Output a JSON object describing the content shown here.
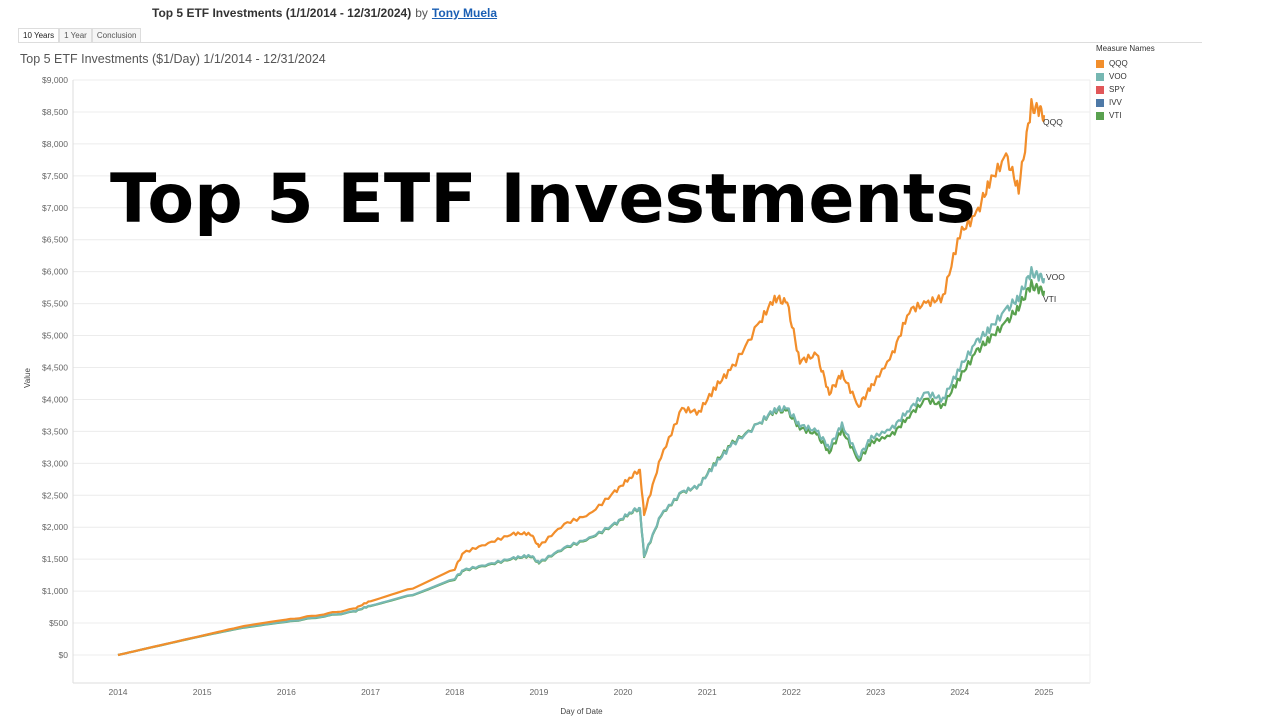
{
  "header": {
    "title": "Top 5 ETF Investments (1/1/2014 - 12/31/2024)",
    "by": "by",
    "author": "Tony Muela"
  },
  "tabs": [
    {
      "label": "10 Years",
      "active": true
    },
    {
      "label": "1 Year",
      "active": false
    },
    {
      "label": "Conclusion",
      "active": false
    }
  ],
  "overlay_text": "Top 5 ETF Investments",
  "chart_data": {
    "type": "line",
    "title": "Top 5 ETF Investments ($1/Day) 1/1/2014 - 12/31/2024",
    "xlabel": "Day of Date",
    "ylabel": "Value",
    "xlim": [
      2014,
      2025
    ],
    "ylim": [
      0,
      9000
    ],
    "x_ticks": [
      "2014",
      "2015",
      "2016",
      "2017",
      "2018",
      "2019",
      "2020",
      "2021",
      "2022",
      "2023",
      "2024",
      "2025"
    ],
    "y_ticks": [
      "$0",
      "$500",
      "$1,000",
      "$1,500",
      "$2,000",
      "$2,500",
      "$3,000",
      "$3,500",
      "$4,000",
      "$4,500",
      "$5,000",
      "$5,500",
      "$6,000",
      "$6,500",
      "$7,000",
      "$7,500",
      "$8,000",
      "$8,500",
      "$9,000"
    ],
    "grid": true,
    "legend": {
      "title": "Measure Names",
      "position": "right"
    },
    "end_labels": [
      "QQQ",
      "VOO",
      "VTI"
    ],
    "series": [
      {
        "name": "QQQ",
        "color": "#f28e2b",
        "x": [
          2014.0,
          2014.5,
          2015.0,
          2015.5,
          2016.0,
          2016.4,
          2016.8,
          2017.0,
          2017.5,
          2018.0,
          2018.1,
          2018.4,
          2018.7,
          2018.9,
          2019.0,
          2019.3,
          2019.6,
          2019.9,
          2020.1,
          2020.2,
          2020.25,
          2020.45,
          2020.7,
          2020.9,
          2021.1,
          2021.3,
          2021.6,
          2021.8,
          2021.95,
          2022.1,
          2022.3,
          2022.45,
          2022.6,
          2022.8,
          2022.95,
          2023.2,
          2023.4,
          2023.6,
          2023.8,
          2024.0,
          2024.2,
          2024.35,
          2024.55,
          2024.7,
          2024.85,
          2024.95,
          2025.0
        ],
        "values": [
          0,
          150,
          300,
          450,
          550,
          630,
          720,
          850,
          1050,
          1350,
          1600,
          1750,
          1900,
          1900,
          1700,
          2050,
          2200,
          2550,
          2800,
          2900,
          2200,
          3100,
          3850,
          3800,
          4200,
          4500,
          5150,
          5600,
          5500,
          4600,
          4700,
          4100,
          4400,
          3900,
          4200,
          4700,
          5400,
          5500,
          5600,
          6600,
          6900,
          7400,
          7800,
          7300,
          8600,
          8500,
          8450
        ]
      },
      {
        "name": "VOO",
        "color": "#76b7b2",
        "x": [
          2014.0,
          2014.5,
          2015.0,
          2015.5,
          2016.0,
          2016.4,
          2016.8,
          2017.0,
          2017.5,
          2018.0,
          2018.1,
          2018.4,
          2018.7,
          2018.9,
          2019.0,
          2019.3,
          2019.6,
          2019.9,
          2020.1,
          2020.2,
          2020.25,
          2020.45,
          2020.7,
          2020.9,
          2021.1,
          2021.3,
          2021.6,
          2021.8,
          2021.95,
          2022.1,
          2022.3,
          2022.45,
          2022.6,
          2022.8,
          2022.95,
          2023.2,
          2023.4,
          2023.6,
          2023.8,
          2024.0,
          2024.2,
          2024.35,
          2024.55,
          2024.7,
          2024.85,
          2024.95,
          2025.0
        ],
        "values": [
          0,
          150,
          300,
          430,
          520,
          600,
          680,
          780,
          950,
          1200,
          1330,
          1420,
          1520,
          1560,
          1450,
          1680,
          1830,
          2050,
          2250,
          2300,
          1550,
          2200,
          2550,
          2650,
          3000,
          3300,
          3600,
          3850,
          3850,
          3600,
          3500,
          3250,
          3600,
          3100,
          3400,
          3550,
          3850,
          4100,
          4000,
          4500,
          4900,
          5100,
          5400,
          5600,
          6000,
          5900,
          5900
        ]
      },
      {
        "name": "SPY",
        "color": "#e15759",
        "x": [],
        "values": []
      },
      {
        "name": "IVV",
        "color": "#4e79a7",
        "x": [],
        "values": []
      },
      {
        "name": "VTI",
        "color": "#59a14f",
        "x": [
          2014.0,
          2014.5,
          2015.0,
          2015.5,
          2016.0,
          2016.4,
          2016.8,
          2017.0,
          2017.5,
          2018.0,
          2018.1,
          2018.4,
          2018.7,
          2018.9,
          2019.0,
          2019.3,
          2019.6,
          2019.9,
          2020.1,
          2020.2,
          2020.25,
          2020.45,
          2020.7,
          2020.9,
          2021.1,
          2021.3,
          2021.6,
          2021.8,
          2021.95,
          2022.1,
          2022.3,
          2022.45,
          2022.6,
          2022.8,
          2022.95,
          2023.2,
          2023.4,
          2023.6,
          2023.8,
          2024.0,
          2024.2,
          2024.35,
          2024.55,
          2024.7,
          2024.85,
          2024.95,
          2025.0
        ],
        "values": [
          0,
          148,
          295,
          425,
          515,
          595,
          675,
          775,
          945,
          1190,
          1320,
          1410,
          1510,
          1550,
          1440,
          1670,
          1820,
          2040,
          2240,
          2290,
          1540,
          2190,
          2540,
          2650,
          3020,
          3320,
          3600,
          3830,
          3820,
          3560,
          3450,
          3180,
          3520,
          3050,
          3330,
          3450,
          3750,
          4000,
          3900,
          4350,
          4750,
          4950,
          5200,
          5450,
          5800,
          5700,
          5700
        ]
      }
    ]
  }
}
